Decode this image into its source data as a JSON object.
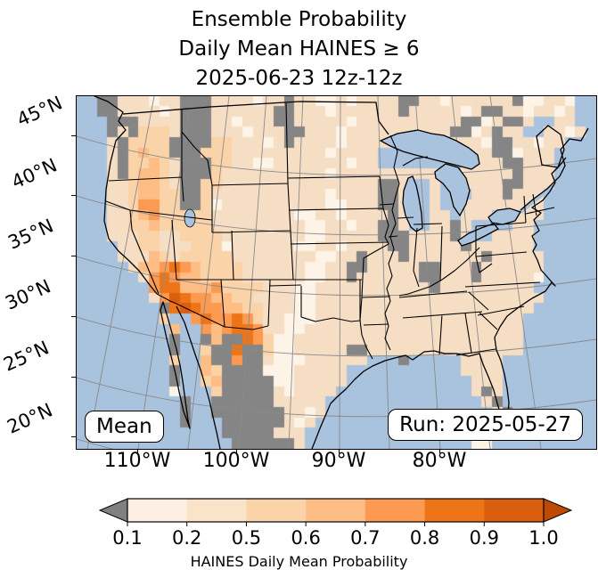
{
  "title_lines": [
    "Ensemble Probability",
    "Daily Mean HAINES ≥ 6",
    "2025-06-23 12z-12z"
  ],
  "badges": {
    "member_label": "Mean",
    "run_label": "Run: 2025-05-27"
  },
  "axes": {
    "y_ticks": [
      "45°N",
      "40°N",
      "35°N",
      "30°N",
      "25°N",
      "20°N"
    ],
    "x_ticks": [
      "110°W",
      "100°W",
      "90°W",
      "80°W"
    ]
  },
  "colorbar": {
    "caption": "HAINES Daily Mean Probability",
    "tick_labels": [
      "0.1",
      "0.2",
      "0.5",
      "0.6",
      "0.7",
      "0.8",
      "0.9",
      "1.0"
    ],
    "segment_colors": [
      "#fdf0e2",
      "#fbe3ca",
      "#fbd3a8",
      "#fdbd84",
      "#fb9a50",
      "#ee7418",
      "#d95f0e"
    ],
    "under_color": "#808080",
    "over_color": "#bf4a03"
  },
  "chart_data": {
    "type": "heatmap",
    "title": "Ensemble Probability Daily Mean HAINES ≥ 6",
    "valid_period": "2025-06-23 12z-12z",
    "run": "2025-05-27",
    "statistic": "Mean",
    "colorbar_label": "HAINES Daily Mean Probability",
    "probability_bin_edges": [
      0.1,
      0.2,
      0.5,
      0.6,
      0.7,
      0.8,
      0.9,
      1.0
    ],
    "lat_ticks_deg_north": [
      45,
      40,
      35,
      30,
      25,
      20
    ],
    "lon_ticks_deg_west": [
      110,
      100,
      90,
      80
    ],
    "legend": {
      "~": "water",
      "L": "lake water",
      "g": "masked / below 0.1 (gray)",
      ".": "0.1-0.2",
      "1": "0.2-0.5",
      "2": "0.5-0.6",
      "3": "0.6-0.7",
      "4": "0.7-0.8",
      "5": "0.8-0.9",
      "6": "0.9-1.0"
    },
    "palette": {
      "~": "#a9c2dd",
      "L": "#a9c2dd",
      "g": "#858585",
      ".": "#fdf3e7",
      "1": "#f6dec4",
      "2": "#fbd3a8",
      "3": "#fdbd84",
      "4": "#fb9a50",
      "5": "#ee7418",
      "6": "#d95f0e"
    },
    "grid_cols": 50,
    "grid_rows": 34,
    "grid": [
      "~~gg111.11ggg1111.11g11..1.1111gg11.111111g..11.~~",
      "~~gg1111.1ggg111111gg111.111111g11111.1gg11.11.1~~",
      "~~~ggg1111ggg11.111gg11111.1111111111gg.1gg1LL11~~",
      "~~~g1g2221ggg111.111gg111.1111111111gg.1g11LL11.1~",
      "~~~1g2222gggg22111.1g1111.111111LLLL111.gg11.11~~~",
      "~~~1g2322ggg222111111111.1111LLLLLLLL111gg.111~~~~",
      "~~~1g22321ggg2211..1111111.11LLLLLLLL1111gg111~~~~",
      "~~~1g23321ggg21111111111.1111111111LL11111g111~~~~",
      "~~~1123321gg22111111111111111gg1LL1LL1111gg111~~~~",
      "~~~1123322gg211111111111.1111gg1LL1LLL111g111~~~~~",
      "~~~1124422gg2.1111111111..111gg1LL1LL11111111~~~~~",
      "~~~11234222221111111 ..11.1111g1LL11L111LL111~~~~~",
      "~~~1122322222111111111..11.11gg1LL11g1LLLL11~~~~~~",
      "~~~1112211222211111111..11111ggg1111g1LL1111~~~~~~",
      "~~~~1122111222.111111..11.1111gg11111g111111~~~~~~",
      "~~~~11132122222111111 1..11g111g1111111g11111~~~~~",
      "~~~~~13345432222111111..11gg11111gg111g111111~~~~~",
      "~~~~~~1454332222111111..11g111111gg111g11111.~~~~~",
      "~~~~~~~45533342222111..11111111111g111111111~~~~~~",
      "~~~~~~~14654433221111..1111111111111111111111~~~~~",
      "~~~~~~~~g565443322111..111111111111111111111~~~~~~",
      "~~~~~~~~2~~454454211...11111111111111111111~~~~~~~",
      "~~~~~~~~~3~~43455411..111111111111111111111~~~~~~~",
      "~~~~~~~~~g~~g3gg542..1111111111111111111111~~~~~~~",
      "~~~~~~~~~g~~2gg5gg2..11111gg111111111111111~~~~~~~",
      "~~~~~~~~~2~~3gg4gg1...111111~~~g~~~~~1111~~~~~~~~~",
      "~~~~~~~~~g~~32gggg...11111~~~~~~~~~~~1111~~~~~~~~~",
      "~~~~~~~~~g~~23ggggg..11111~~~~~~~~~~~~111~~~~~~~~~",
      "~~~~~~~~~.~~~2ggggg1.1111~~~~~~~~~~~~~1g1~~~~~~~~~",
      "~~~~~~~~~~g~~gggggg11111~~~~~~~~~~~~~~~1g~~~~~~~~~",
      "~~~~~~~~~~g~~ggggggg11.1~~~~~~~~~~~~~~~~1g~~~~~~~~",
      "~~~~~~~~~~g~~~gggggg1.1~~~~~~~~~~~~~~~~~g~~g~~~~~~",
      "~~~~~~~~~~~~~~ggggg111~~~~~~~~~~~~~~~~.~~~~~~~~~~~",
      "~~~~~~~~~~~~~~~gggggg1~~~~~~~~~~~~~~~~..~~~~~~~~~~"
    ]
  }
}
